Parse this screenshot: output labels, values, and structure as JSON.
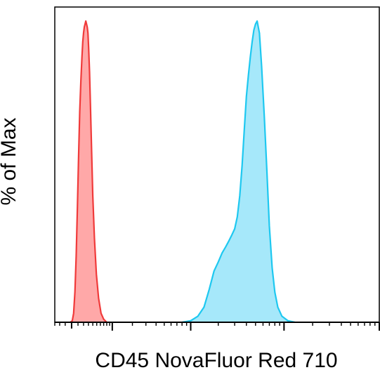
{
  "chart_data": {
    "type": "area",
    "title": "",
    "xlabel": "CD45 NovaFluor Red 710",
    "ylabel": "% of Max",
    "x_scale": "log",
    "xlim": [
      -300,
      1000000
    ],
    "ylim": [
      0,
      100
    ],
    "x_tick_labels": [],
    "y_tick_labels": [],
    "grid": false,
    "legend": "none",
    "series": [
      {
        "color": "#f03a3a",
        "fill": "#ffa8a8",
        "points": [
          [
            -20,
            0
          ],
          [
            10,
            0.5
          ],
          [
            30,
            3
          ],
          [
            50,
            10
          ],
          [
            70,
            22
          ],
          [
            90,
            38
          ],
          [
            110,
            55
          ],
          [
            130,
            70
          ],
          [
            150,
            80
          ],
          [
            170,
            88
          ],
          [
            185,
            93
          ],
          [
            200,
            96
          ],
          [
            215,
            98
          ],
          [
            230,
            99
          ],
          [
            245,
            100
          ],
          [
            260,
            99
          ],
          [
            275,
            98
          ],
          [
            290,
            96
          ],
          [
            305,
            91
          ],
          [
            325,
            83
          ],
          [
            345,
            72
          ],
          [
            370,
            58
          ],
          [
            400,
            42
          ],
          [
            440,
            28
          ],
          [
            490,
            16
          ],
          [
            550,
            8
          ],
          [
            620,
            3
          ],
          [
            700,
            1
          ],
          [
            800,
            0
          ]
        ]
      },
      {
        "color": "#1ec8f0",
        "fill": "#a6e8fa",
        "points": [
          [
            8000,
            0
          ],
          [
            10000,
            0.5
          ],
          [
            12000,
            2
          ],
          [
            14000,
            5
          ],
          [
            16000,
            11
          ],
          [
            18000,
            17
          ],
          [
            20000,
            20
          ],
          [
            22000,
            23
          ],
          [
            24000,
            25
          ],
          [
            26000,
            27
          ],
          [
            28000,
            29
          ],
          [
            30000,
            31
          ],
          [
            32000,
            35
          ],
          [
            34000,
            42
          ],
          [
            36000,
            52
          ],
          [
            38000,
            64
          ],
          [
            40000,
            75
          ],
          [
            42000,
            82
          ],
          [
            44000,
            88
          ],
          [
            46000,
            93
          ],
          [
            48000,
            97
          ],
          [
            50000,
            99
          ],
          [
            52000,
            100
          ],
          [
            55000,
            96
          ],
          [
            58000,
            85
          ],
          [
            62000,
            68
          ],
          [
            66000,
            50
          ],
          [
            70000,
            32
          ],
          [
            75000,
            18
          ],
          [
            80000,
            10
          ],
          [
            86000,
            5
          ],
          [
            95000,
            2
          ],
          [
            110000,
            0.5
          ],
          [
            130000,
            0
          ]
        ]
      }
    ]
  }
}
